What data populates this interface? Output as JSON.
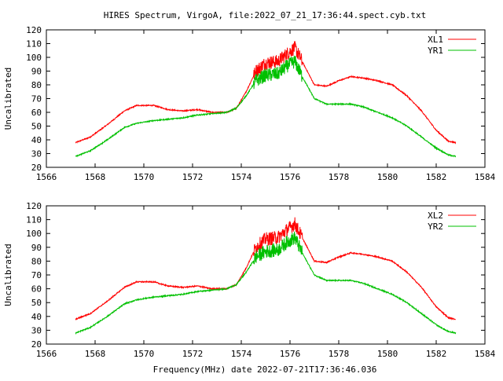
{
  "title": "HIRES Spectrum, VirgoA, file:2022_07_21_17:36:44.spect.cyb.txt",
  "footer": "Frequency(MHz) date 2022-07-21T17:36:46.036",
  "colors": {
    "red": "#ff0000",
    "green": "#00c000"
  },
  "chart_data": [
    {
      "type": "line",
      "ylabel": "Uncalibrated",
      "xlim": [
        1566,
        1584
      ],
      "ylim": [
        20,
        120
      ],
      "x_ticks": [
        1566,
        1568,
        1570,
        1572,
        1574,
        1576,
        1578,
        1580,
        1582,
        1584
      ],
      "y_ticks": [
        20,
        30,
        40,
        50,
        60,
        70,
        80,
        90,
        100,
        110,
        120
      ],
      "legend_position": "top-right",
      "grid": false,
      "series": [
        {
          "name": "XL1",
          "color": "#ff0000",
          "points": [
            [
              1567.2,
              38
            ],
            [
              1567.8,
              42
            ],
            [
              1568.5,
              51
            ],
            [
              1569.2,
              61
            ],
            [
              1569.7,
              65
            ],
            [
              1570.4,
              65
            ],
            [
              1571.0,
              62
            ],
            [
              1571.6,
              61
            ],
            [
              1572.2,
              62
            ],
            [
              1572.8,
              60
            ],
            [
              1573.4,
              60
            ],
            [
              1573.8,
              63
            ],
            [
              1574.2,
              75
            ],
            [
              1574.6,
              90
            ],
            [
              1575.0,
              96
            ],
            [
              1575.5,
              97
            ],
            [
              1575.9,
              103
            ],
            [
              1576.2,
              107
            ],
            [
              1576.5,
              97
            ],
            [
              1577.0,
              80
            ],
            [
              1577.5,
              79
            ],
            [
              1578.0,
              83
            ],
            [
              1578.5,
              86
            ],
            [
              1579.0,
              85
            ],
            [
              1579.6,
              83
            ],
            [
              1580.2,
              80
            ],
            [
              1580.8,
              72
            ],
            [
              1581.4,
              61
            ],
            [
              1582.0,
              47
            ],
            [
              1582.5,
              39
            ],
            [
              1582.8,
              38
            ]
          ],
          "noise_band": [
            1574.5,
            1576.5
          ]
        },
        {
          "name": "YR1",
          "color": "#00c000",
          "points": [
            [
              1567.2,
              28
            ],
            [
              1567.8,
              32
            ],
            [
              1568.5,
              40
            ],
            [
              1569.2,
              49
            ],
            [
              1569.7,
              52
            ],
            [
              1570.4,
              54
            ],
            [
              1571.0,
              55
            ],
            [
              1571.6,
              56
            ],
            [
              1572.2,
              58
            ],
            [
              1572.8,
              59
            ],
            [
              1573.4,
              60
            ],
            [
              1573.8,
              63
            ],
            [
              1574.2,
              72
            ],
            [
              1574.6,
              83
            ],
            [
              1575.0,
              87
            ],
            [
              1575.5,
              88
            ],
            [
              1575.9,
              94
            ],
            [
              1576.2,
              97
            ],
            [
              1576.5,
              86
            ],
            [
              1577.0,
              70
            ],
            [
              1577.5,
              66
            ],
            [
              1578.0,
              66
            ],
            [
              1578.5,
              66
            ],
            [
              1579.0,
              64
            ],
            [
              1579.6,
              60
            ],
            [
              1580.2,
              56
            ],
            [
              1580.8,
              50
            ],
            [
              1581.4,
              42
            ],
            [
              1582.0,
              34
            ],
            [
              1582.5,
              29
            ],
            [
              1582.8,
              28
            ]
          ],
          "noise_band": [
            1574.5,
            1576.5
          ]
        }
      ]
    },
    {
      "type": "line",
      "ylabel": "Uncalibrated",
      "xlim": [
        1566,
        1584
      ],
      "ylim": [
        20,
        120
      ],
      "x_ticks": [
        1566,
        1568,
        1570,
        1572,
        1574,
        1576,
        1578,
        1580,
        1582,
        1584
      ],
      "y_ticks": [
        20,
        30,
        40,
        50,
        60,
        70,
        80,
        90,
        100,
        110,
        120
      ],
      "legend_position": "top-right",
      "grid": false,
      "series": [
        {
          "name": "XL2",
          "color": "#ff0000",
          "points": [
            [
              1567.2,
              38
            ],
            [
              1567.8,
              42
            ],
            [
              1568.5,
              51
            ],
            [
              1569.2,
              61
            ],
            [
              1569.7,
              65
            ],
            [
              1570.4,
              65
            ],
            [
              1571.0,
              62
            ],
            [
              1571.6,
              61
            ],
            [
              1572.2,
              62
            ],
            [
              1572.8,
              60
            ],
            [
              1573.4,
              60
            ],
            [
              1573.8,
              63
            ],
            [
              1574.2,
              75
            ],
            [
              1574.6,
              90
            ],
            [
              1575.0,
              96
            ],
            [
              1575.5,
              97
            ],
            [
              1575.9,
              103
            ],
            [
              1576.2,
              107
            ],
            [
              1576.5,
              97
            ],
            [
              1577.0,
              80
            ],
            [
              1577.5,
              79
            ],
            [
              1578.0,
              83
            ],
            [
              1578.5,
              86
            ],
            [
              1579.0,
              85
            ],
            [
              1579.6,
              83
            ],
            [
              1580.2,
              80
            ],
            [
              1580.8,
              72
            ],
            [
              1581.4,
              61
            ],
            [
              1582.0,
              47
            ],
            [
              1582.5,
              39
            ],
            [
              1582.8,
              38
            ]
          ],
          "noise_band": [
            1574.5,
            1576.5
          ]
        },
        {
          "name": "YR2",
          "color": "#00c000",
          "points": [
            [
              1567.2,
              28
            ],
            [
              1567.8,
              32
            ],
            [
              1568.5,
              40
            ],
            [
              1569.2,
              49
            ],
            [
              1569.7,
              52
            ],
            [
              1570.4,
              54
            ],
            [
              1571.0,
              55
            ],
            [
              1571.6,
              56
            ],
            [
              1572.2,
              58
            ],
            [
              1572.8,
              59
            ],
            [
              1573.4,
              60
            ],
            [
              1573.8,
              63
            ],
            [
              1574.2,
              72
            ],
            [
              1574.6,
              83
            ],
            [
              1575.0,
              87
            ],
            [
              1575.5,
              88
            ],
            [
              1575.9,
              94
            ],
            [
              1576.2,
              97
            ],
            [
              1576.5,
              86
            ],
            [
              1577.0,
              70
            ],
            [
              1577.5,
              66
            ],
            [
              1578.0,
              66
            ],
            [
              1578.5,
              66
            ],
            [
              1579.0,
              64
            ],
            [
              1579.6,
              60
            ],
            [
              1580.2,
              56
            ],
            [
              1580.8,
              50
            ],
            [
              1581.4,
              42
            ],
            [
              1582.0,
              34
            ],
            [
              1582.5,
              29
            ],
            [
              1582.8,
              28
            ]
          ],
          "noise_band": [
            1574.5,
            1576.5
          ]
        }
      ]
    }
  ]
}
